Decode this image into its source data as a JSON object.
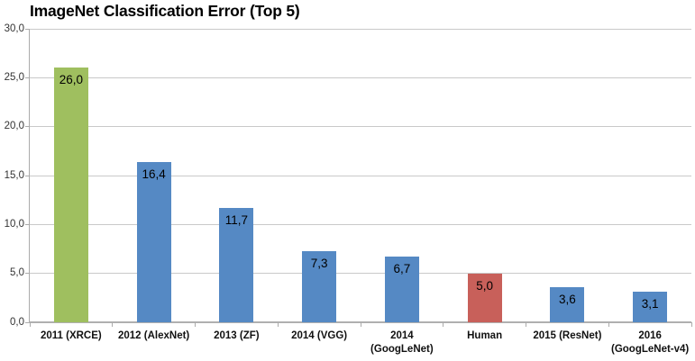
{
  "title": "ImageNet Classification Error (Top 5)",
  "chart_data": {
    "type": "bar",
    "title": "ImageNet Classification Error (Top 5)",
    "categories": [
      "2011 (XRCE)",
      "2012 (AlexNet)",
      "2013 (ZF)",
      "2014 (VGG)",
      "2014 (GoogLeNet)",
      "Human",
      "2015 (ResNet)",
      "2016 (GoogLeNet-v4)"
    ],
    "values": [
      26.0,
      16.4,
      11.7,
      7.3,
      6.7,
      5.0,
      3.6,
      3.1
    ],
    "value_labels": [
      "26,0",
      "16,4",
      "11,7",
      "7,3",
      "6,7",
      "5,0",
      "3,6",
      "3,1"
    ],
    "bar_colors": [
      "#9fbf5f",
      "#5589c4",
      "#5589c4",
      "#5589c4",
      "#5589c4",
      "#c8605a",
      "#5589c4",
      "#5589c4"
    ],
    "xlabel": "",
    "ylabel": "",
    "ylim": [
      0,
      30
    ],
    "ytick_step": 5,
    "ytick_labels": [
      "0,0",
      "5,0",
      "10,0",
      "15,0",
      "20,0",
      "25,0",
      "30,0"
    ],
    "decimal_separator": ",",
    "grid": true,
    "legend": false
  },
  "colors": {
    "background": "#ffffff",
    "gridline": "#c9c9c9",
    "axis": "#ababab",
    "text": "#000000",
    "bar_green": "#9fbf5f",
    "bar_blue": "#5589c4",
    "bar_red": "#c8605a"
  }
}
